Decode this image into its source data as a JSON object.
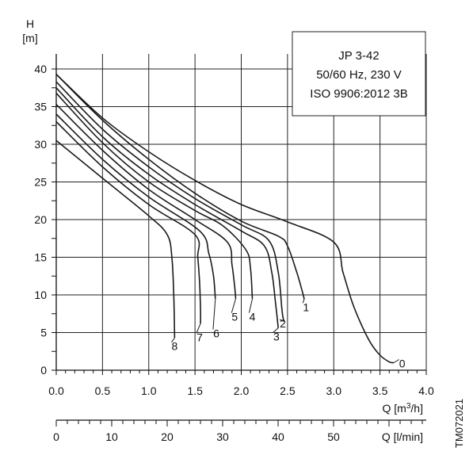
{
  "chart_data": {
    "type": "line",
    "title": "",
    "info_box": [
      "JP 3-42",
      "50/60 Hz, 230 V",
      "ISO 9906:2012 3B"
    ],
    "ylabel": "H",
    "yunit": "[m]",
    "xlabel": "Q [m³/h]",
    "x2label": "Q [l/min]",
    "xlim": [
      0,
      4.0
    ],
    "ylim": [
      0,
      42
    ],
    "x_ticks": [
      "0.0",
      "0.5",
      "1.0",
      "1.5",
      "2.0",
      "2.5",
      "3.0",
      "3.5",
      "4.0"
    ],
    "y_ticks": [
      "0",
      "5",
      "10",
      "15",
      "20",
      "25",
      "30",
      "35",
      "40"
    ],
    "x2_ticks": [
      "0",
      "10",
      "20",
      "30",
      "40",
      "50"
    ],
    "grid": true,
    "side_text": "TM072021",
    "series": [
      {
        "name": "0",
        "x": [
          0,
          0.5,
          1.0,
          1.5,
          2.0,
          2.5,
          3.0,
          3.1,
          3.2,
          3.3,
          3.4,
          3.5,
          3.6,
          3.65
        ],
        "y": [
          39.3,
          33.5,
          29.0,
          25.2,
          22.0,
          19.7,
          17.0,
          13.0,
          9.0,
          6.0,
          3.6,
          2.0,
          1.1,
          1.0
        ],
        "label_x": 3.74,
        "label_y": 1.0
      },
      {
        "name": "1",
        "x": [
          0,
          0.5,
          1.0,
          1.5,
          2.0,
          2.4,
          2.5,
          2.6,
          2.67,
          2.68
        ],
        "y": [
          39.3,
          33.2,
          28.0,
          23.5,
          19.8,
          17.8,
          16.5,
          13.0,
          10.0,
          9.4
        ],
        "label_x": 2.7,
        "label_y": 8.5
      },
      {
        "name": "2",
        "x": [
          0,
          0.5,
          1.0,
          1.5,
          2.0,
          2.3,
          2.4,
          2.44,
          2.46
        ],
        "y": [
          38.3,
          32.0,
          27.0,
          22.8,
          19.3,
          17.2,
          13.0,
          8.0,
          6.5
        ],
        "label_x": 2.45,
        "label_y": 6.3
      },
      {
        "name": "3",
        "x": [
          0,
          0.5,
          1.0,
          1.5,
          2.0,
          2.25,
          2.33,
          2.37,
          2.4
        ],
        "y": [
          37.5,
          31.0,
          26.0,
          22.0,
          18.5,
          16.5,
          13.0,
          9.0,
          5.6
        ],
        "label_x": 2.38,
        "label_y": 4.6
      },
      {
        "name": "4",
        "x": [
          0,
          0.5,
          1.0,
          1.5,
          1.8,
          2.05,
          2.1,
          2.12
        ],
        "y": [
          36.8,
          30.2,
          25.0,
          21.2,
          19.2,
          16.0,
          13.5,
          9.5
        ],
        "label_x": 2.12,
        "label_y": 7.2
      },
      {
        "name": "5",
        "x": [
          0,
          0.5,
          1.0,
          1.5,
          1.85,
          1.9,
          1.93,
          1.94
        ],
        "y": [
          35.3,
          29.2,
          24.0,
          20.0,
          17.0,
          14.0,
          11.0,
          9.5
        ],
        "label_x": 1.93,
        "label_y": 7.2
      },
      {
        "name": "6",
        "x": [
          0,
          0.5,
          1.0,
          1.55,
          1.65,
          1.7,
          1.72
        ],
        "y": [
          34.0,
          28.0,
          23.0,
          18.5,
          15.5,
          12.5,
          9.5
        ],
        "label_x": 1.73,
        "label_y": 5.0
      },
      {
        "name": "7",
        "x": [
          0,
          0.5,
          1.0,
          1.5,
          1.53,
          1.55,
          1.56,
          1.56
        ],
        "y": [
          33.0,
          27.0,
          22.0,
          18.0,
          15.0,
          11.5,
          8.0,
          6.2
        ],
        "label_x": 1.55,
        "label_y": 4.5
      },
      {
        "name": "8",
        "x": [
          0,
          0.5,
          1.0,
          1.2,
          1.25,
          1.27,
          1.28
        ],
        "y": [
          30.5,
          25.5,
          20.5,
          18.0,
          15.0,
          10.0,
          4.3
        ],
        "label_x": 1.28,
        "label_y": 3.3
      }
    ]
  }
}
